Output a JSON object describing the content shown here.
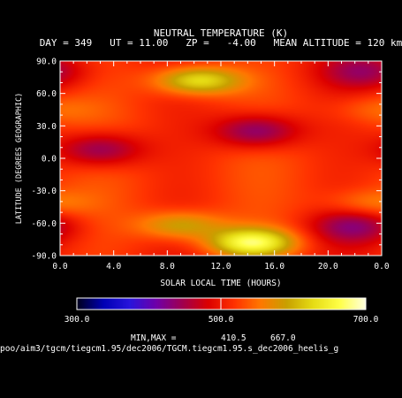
{
  "chart_data": {
    "type": "heatmap",
    "title": "NEUTRAL TEMPERATURE (K)",
    "subtitle": "DAY = 349   UT = 11.00   ZP =   -4.00   MEAN ALTITUDE = 120 km",
    "xlabel": "SOLAR LOCAL TIME (HOURS)",
    "ylabel": "LATITUDE (DEGREES GEOGRAPHIC)",
    "xlim": [
      0,
      24
    ],
    "ylim": [
      -90,
      90
    ],
    "x_tick_labels": [
      "0.0",
      "4.0",
      "8.0",
      "12.0",
      "16.0",
      "20.0",
      "0.0"
    ],
    "y_tick_labels": [
      "90.0",
      "60.0",
      "30.0",
      "0.0",
      "-30.0",
      "-60.0",
      "-90.0"
    ],
    "colorbar": {
      "range": [
        300,
        700
      ],
      "tick_labels": [
        "300.0",
        "500.0",
        "700.0"
      ],
      "colors": [
        "#00001e",
        "#0000b4",
        "#2814dc",
        "#6e00aa",
        "#a00050",
        "#dc0000",
        "#ff3200",
        "#ff7800",
        "#c8a000",
        "#e6dc14",
        "#ffff46",
        "#ffffdc"
      ]
    },
    "min_max_label": "MIN,MAX =",
    "min": "410.5",
    "max": "667.0",
    "features": [
      {
        "kind": "min",
        "x": 3.0,
        "y": 8,
        "value": 425
      },
      {
        "kind": "min",
        "x": 14.7,
        "y": 25,
        "value": 418
      },
      {
        "kind": "min",
        "x": 22.8,
        "y": 80,
        "value": 450
      },
      {
        "kind": "min",
        "x": 22.0,
        "y": -63,
        "value": 440
      },
      {
        "kind": "max",
        "x": 10.3,
        "y": 72,
        "value": 640
      },
      {
        "kind": "max",
        "x": 14.3,
        "y": -78,
        "value": 665
      },
      {
        "kind": "max",
        "x": 9.0,
        "y": -62,
        "value": 600
      },
      {
        "kind": "max",
        "x": 23.5,
        "y": 45,
        "value": 545
      },
      {
        "kind": "max",
        "x": 23.0,
        "y": -42,
        "value": 560
      }
    ]
  },
  "footer_path": "poo/aim3/tgcm/tiegcm1.95/dec2006/TGCM.tiegcm1.95.s_dec2006_heelis_g"
}
